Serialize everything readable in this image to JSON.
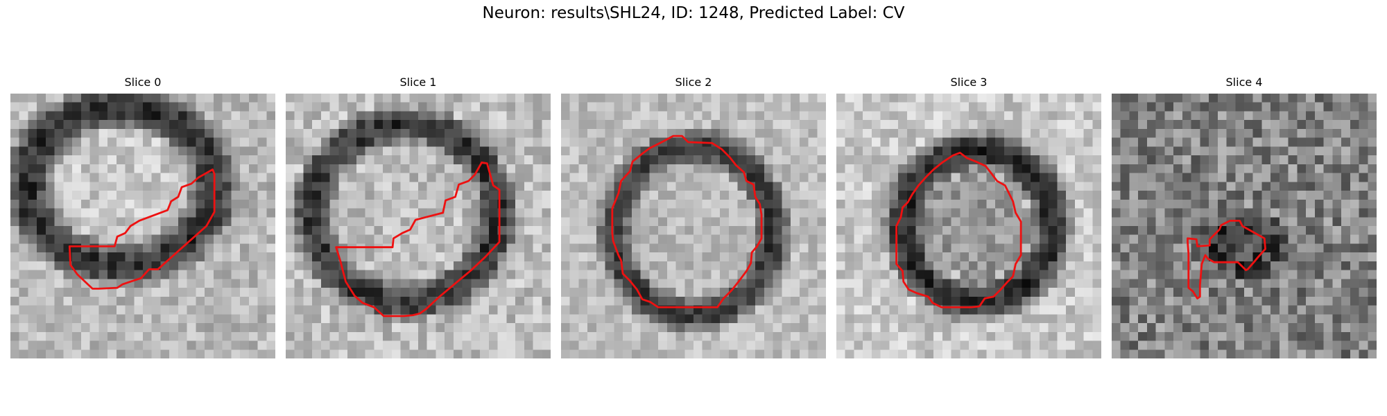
{
  "figure": {
    "title": "Neuron: results\\SHL24, ID: 1248, Predicted Label: CV"
  },
  "panels": [
    {
      "title": "Slice 0"
    },
    {
      "title": "Slice 1"
    },
    {
      "title": "Slice 2"
    },
    {
      "title": "Slice 3"
    },
    {
      "title": "Slice 4"
    }
  ],
  "colors": {
    "contour": "#ee1111",
    "background": "#ffffff"
  }
}
